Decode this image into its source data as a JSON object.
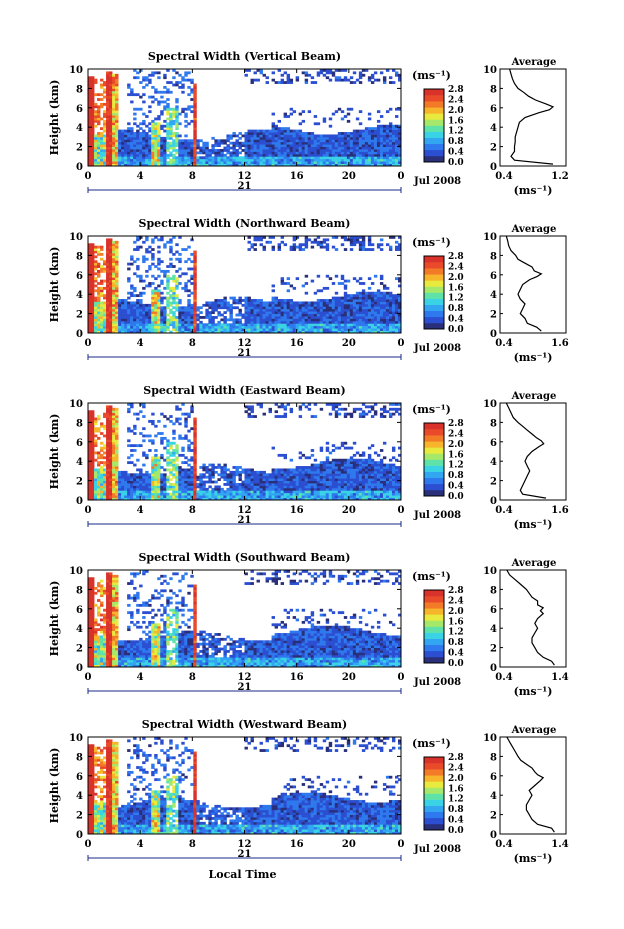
{
  "xlabel": "Local Time",
  "date_label": "Jul 2008",
  "day_label": "21",
  "colorbar_unit": "(ms⁻¹)",
  "colorbar_ticks": [
    "0.0",
    "0.4",
    "0.8",
    "1.2",
    "1.6",
    "2.0",
    "2.4",
    "2.8"
  ],
  "ylabel": "Height (km)",
  "profile_title": "Average",
  "profile_xlabel": "(ms⁻¹)",
  "chart_data": [
    {
      "type": "heatmap",
      "title": "Spectral Width (Vertical Beam)",
      "xlabel": "Local Time",
      "ylabel": "Height (km)",
      "x_ticks": [
        "0",
        "4",
        "8",
        "12",
        "16",
        "20",
        "0"
      ],
      "y_ticks": [
        "0",
        "2",
        "4",
        "6",
        "8",
        "10"
      ],
      "xlim": [
        0,
        24
      ],
      "ylim": [
        0,
        10
      ],
      "clim": [
        0,
        2.8
      ],
      "profile": {
        "title": "Average",
        "xlabel": "(ms⁻¹)",
        "x_ticks": [
          "0.4",
          "1.2"
        ],
        "xlim": [
          0.4,
          1.2
        ],
        "heights": [
          0.2,
          0.6,
          1.0,
          1.5,
          2,
          2.5,
          3,
          3.5,
          4,
          4.5,
          5,
          5.5,
          5.8,
          6.1,
          6.4,
          6.8,
          7.2,
          7.6,
          8,
          8.5,
          9,
          9.5,
          10
        ],
        "values": [
          1.1,
          0.55,
          0.5,
          0.55,
          0.55,
          0.56,
          0.56,
          0.58,
          0.6,
          0.62,
          0.7,
          0.9,
          1.05,
          1.1,
          1.0,
          0.85,
          0.75,
          0.68,
          0.6,
          0.55,
          0.52,
          0.5,
          0.48
        ]
      }
    },
    {
      "type": "heatmap",
      "title": "Spectral Width (Northward Beam)",
      "xlabel": "Local Time",
      "ylabel": "Height (km)",
      "x_ticks": [
        "0",
        "4",
        "8",
        "12",
        "16",
        "20",
        "0"
      ],
      "y_ticks": [
        "0",
        "2",
        "4",
        "6",
        "8",
        "10"
      ],
      "xlim": [
        0,
        24
      ],
      "ylim": [
        0,
        10
      ],
      "clim": [
        0,
        2.8
      ],
      "profile": {
        "title": "Average",
        "xlabel": "(ms⁻¹)",
        "x_ticks": [
          "0.4",
          "1.6"
        ],
        "xlim": [
          0.4,
          1.6
        ],
        "heights": [
          0.2,
          0.6,
          1.0,
          1.5,
          2,
          2.5,
          3,
          3.5,
          4,
          4.5,
          5,
          5.5,
          5.8,
          6.1,
          6.4,
          6.8,
          7.2,
          7.6,
          8,
          8.5,
          9,
          9.5,
          10
        ],
        "values": [
          1.2,
          1.1,
          0.9,
          0.85,
          0.75,
          0.8,
          0.85,
          0.75,
          0.7,
          0.75,
          0.8,
          0.95,
          1.1,
          1.2,
          1.05,
          1.0,
          0.85,
          0.7,
          0.65,
          0.55,
          0.5,
          0.48,
          0.45
        ]
      }
    },
    {
      "type": "heatmap",
      "title": "Spectral Width (Eastward Beam)",
      "xlabel": "Local Time",
      "ylabel": "Height (km)",
      "x_ticks": [
        "0",
        "4",
        "8",
        "12",
        "16",
        "20",
        "0"
      ],
      "y_ticks": [
        "0",
        "2",
        "4",
        "6",
        "8",
        "10"
      ],
      "xlim": [
        0,
        24
      ],
      "ylim": [
        0,
        10
      ],
      "clim": [
        0,
        2.8
      ],
      "profile": {
        "title": "Average",
        "xlabel": "(ms⁻¹)",
        "x_ticks": [
          "0.4",
          "1.6"
        ],
        "xlim": [
          0.4,
          1.6
        ],
        "heights": [
          0.2,
          0.6,
          1.0,
          1.5,
          2,
          2.5,
          3,
          3.5,
          4,
          4.5,
          5,
          5.5,
          5.8,
          6.1,
          6.4,
          6.8,
          7.2,
          7.6,
          8,
          8.5,
          9,
          9.5,
          10
        ],
        "values": [
          1.3,
          0.8,
          0.75,
          0.8,
          0.85,
          0.9,
          0.95,
          0.9,
          0.85,
          0.9,
          1.0,
          1.15,
          1.25,
          1.2,
          1.1,
          1.0,
          0.9,
          0.8,
          0.7,
          0.6,
          0.55,
          0.5,
          0.45
        ]
      }
    },
    {
      "type": "heatmap",
      "title": "Spectral Width (Southward Beam)",
      "xlabel": "Local Time",
      "ylabel": "Height (km)",
      "x_ticks": [
        "0",
        "4",
        "8",
        "12",
        "16",
        "20",
        "0"
      ],
      "y_ticks": [
        "0",
        "2",
        "4",
        "6",
        "8",
        "10"
      ],
      "xlim": [
        0,
        24
      ],
      "ylim": [
        0,
        10
      ],
      "clim": [
        0,
        2.8
      ],
      "profile": {
        "title": "Average",
        "xlabel": "(ms⁻¹)",
        "x_ticks": [
          "0.4",
          "1.4"
        ],
        "xlim": [
          0.4,
          1.4
        ],
        "heights": [
          0.2,
          0.6,
          1.0,
          1.5,
          2,
          2.5,
          3,
          3.5,
          4,
          4.5,
          5,
          5.5,
          5.8,
          6.1,
          6.4,
          6.8,
          7.2,
          7.6,
          8,
          8.5,
          9,
          9.5,
          10
        ],
        "values": [
          1.3,
          1.25,
          1.1,
          1.0,
          0.95,
          0.9,
          0.9,
          0.95,
          1.0,
          0.95,
          1.0,
          1.1,
          1.05,
          1.1,
          1.0,
          1.0,
          0.9,
          0.85,
          0.8,
          0.7,
          0.6,
          0.5,
          0.45
        ]
      }
    },
    {
      "type": "heatmap",
      "title": "Spectral Width (Westward Beam)",
      "xlabel": "Local Time",
      "ylabel": "Height (km)",
      "x_ticks": [
        "0",
        "4",
        "8",
        "12",
        "16",
        "20",
        "0"
      ],
      "y_ticks": [
        "0",
        "2",
        "4",
        "6",
        "8",
        "10"
      ],
      "xlim": [
        0,
        24
      ],
      "ylim": [
        0,
        10
      ],
      "clim": [
        0,
        2.8
      ],
      "profile": {
        "title": "Average",
        "xlabel": "(ms⁻¹)",
        "x_ticks": [
          "0.4",
          "1.4"
        ],
        "xlim": [
          0.4,
          1.4
        ],
        "heights": [
          0.2,
          0.6,
          1.0,
          1.5,
          2,
          2.5,
          3,
          3.5,
          4,
          4.5,
          5,
          5.5,
          5.8,
          6.1,
          6.4,
          6.8,
          7.2,
          7.6,
          8,
          8.5,
          9,
          9.5,
          10
        ],
        "values": [
          1.3,
          1.25,
          1.0,
          0.9,
          0.85,
          0.8,
          0.8,
          0.85,
          0.9,
          0.85,
          0.95,
          1.05,
          1.1,
          1.0,
          0.95,
          0.9,
          0.8,
          0.7,
          0.65,
          0.6,
          0.55,
          0.5,
          0.45
        ]
      }
    }
  ]
}
